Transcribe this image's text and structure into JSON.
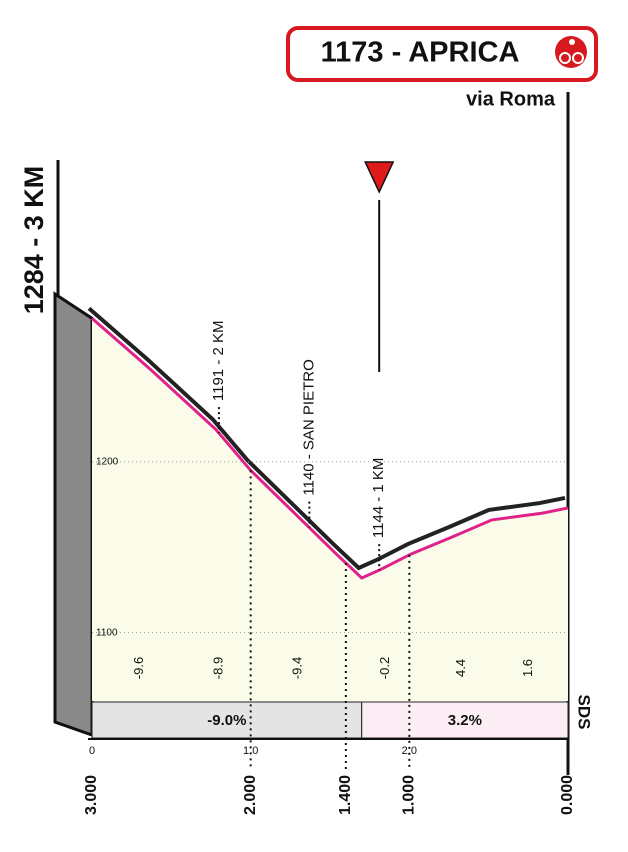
{
  "chart_data": {
    "type": "area",
    "title": "1173 - APRICA",
    "subtitle": "via Roma",
    "start_label": "1284 - 3 KM",
    "brand": "SDS",
    "color": "#e0218a",
    "x": [
      3.0,
      2.63,
      2.22,
      2.0,
      1.68,
      1.46,
      1.3,
      1.18,
      0.99,
      0.73,
      0.48,
      0.16,
      0.0
    ],
    "values": [
      1284,
      1254,
      1219,
      1195,
      1166,
      1146,
      1132,
      1137,
      1146,
      1156,
      1166,
      1170,
      1173
    ],
    "xlim": [
      3,
      0
    ],
    "xticks": [
      {
        "value": 3,
        "label": "3.000"
      },
      {
        "value": 2,
        "label": "2.000"
      },
      {
        "value": 1.4,
        "label": "1.400"
      },
      {
        "value": 1,
        "label": "1.000"
      },
      {
        "value": 0,
        "label": "0.000"
      }
    ],
    "km_ticks": [
      {
        "value": 3,
        "label": "0"
      },
      {
        "value": 2,
        "label": "1.0"
      },
      {
        "value": 1,
        "label": "2.0"
      }
    ],
    "ylim": [
      1060,
      1300
    ],
    "yticks": [
      1100,
      1200
    ],
    "markers": [
      {
        "x": 2.2,
        "label": "1191 - 2 KM"
      },
      {
        "x": 1.63,
        "label": "1140 - SAN PIETRO"
      },
      {
        "x": 1.19,
        "label": "1144 - 1 KM"
      }
    ],
    "gradients": {
      "x": [
        2.7,
        2.2,
        1.7,
        1.15,
        0.67,
        0.25
      ],
      "values": [
        -9.6,
        -8.9,
        -9.4,
        -0.2,
        4.4,
        1.6
      ]
    },
    "segments": {
      "bounds": [
        3,
        1.3,
        0
      ],
      "values": [
        -9.0,
        3.2
      ],
      "value_labels": [
        "-9.0%",
        "3.2%"
      ],
      "colors": [
        "#e4e4e4",
        "#fdeef6"
      ]
    }
  }
}
